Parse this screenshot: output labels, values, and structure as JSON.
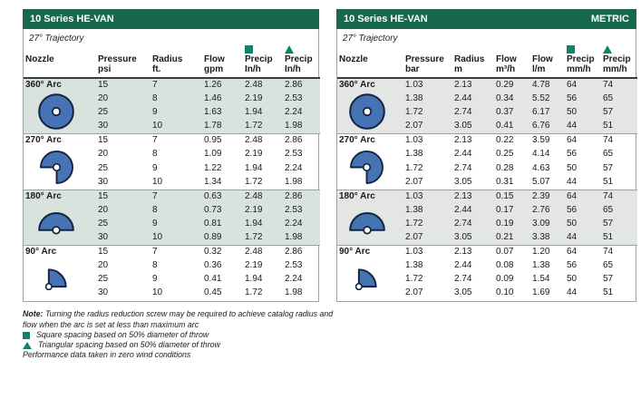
{
  "colors": {
    "header_green": "#17684F",
    "marker_green": "#118268",
    "nozzle_blue": "#4673B4",
    "nozzle_outline": "#14243F",
    "shade_us": "#D8E3DE",
    "shade_metric": "#E4E6E4"
  },
  "tables": [
    {
      "title": "10 Series HE-VAN",
      "badge": "",
      "trajectory": "27° Trajectory",
      "columns": [
        {
          "label": "Nozzle",
          "sub": "",
          "marker": ""
        },
        {
          "label": "Pressure",
          "sub": "psi",
          "marker": ""
        },
        {
          "label": "Radius",
          "sub": "ft.",
          "marker": ""
        },
        {
          "label": "Flow",
          "sub": "gpm",
          "marker": ""
        },
        {
          "label": "Precip",
          "sub": "In/h",
          "marker": "square"
        },
        {
          "label": "Precip",
          "sub": "In/h",
          "marker": "triangle"
        }
      ],
      "groups": [
        {
          "arc": "360° Arc",
          "icon": "arc-360",
          "shaded": true,
          "rows": [
            [
              "15",
              "7",
              "1.26",
              "2.48",
              "2.86"
            ],
            [
              "20",
              "8",
              "1.46",
              "2.19",
              "2.53"
            ],
            [
              "25",
              "9",
              "1.63",
              "1.94",
              "2.24"
            ],
            [
              "30",
              "10",
              "1.78",
              "1.72",
              "1.98"
            ]
          ]
        },
        {
          "arc": "270° Arc",
          "icon": "arc-270",
          "shaded": false,
          "rows": [
            [
              "15",
              "7",
              "0.95",
              "2.48",
              "2.86"
            ],
            [
              "20",
              "8",
              "1.09",
              "2.19",
              "2.53"
            ],
            [
              "25",
              "9",
              "1.22",
              "1.94",
              "2.24"
            ],
            [
              "30",
              "10",
              "1.34",
              "1.72",
              "1.98"
            ]
          ]
        },
        {
          "arc": "180° Arc",
          "icon": "arc-180",
          "shaded": true,
          "rows": [
            [
              "15",
              "7",
              "0.63",
              "2.48",
              "2.86"
            ],
            [
              "20",
              "8",
              "0.73",
              "2.19",
              "2.53"
            ],
            [
              "25",
              "9",
              "0.81",
              "1.94",
              "2.24"
            ],
            [
              "30",
              "10",
              "0.89",
              "1.72",
              "1.98"
            ]
          ]
        },
        {
          "arc": "90° Arc",
          "icon": "arc-90",
          "shaded": false,
          "rows": [
            [
              "15",
              "7",
              "0.32",
              "2.48",
              "2.86"
            ],
            [
              "20",
              "8",
              "0.36",
              "2.19",
              "2.53"
            ],
            [
              "25",
              "9",
              "0.41",
              "1.94",
              "2.24"
            ],
            [
              "30",
              "10",
              "0.45",
              "1.72",
              "1.98"
            ]
          ]
        }
      ]
    },
    {
      "title": "10 Series HE-VAN",
      "badge": "METRIC",
      "trajectory": "27° Trajectory",
      "columns": [
        {
          "label": "Nozzle",
          "sub": "",
          "marker": ""
        },
        {
          "label": "Pressure",
          "sub": "bar",
          "marker": ""
        },
        {
          "label": "Radius",
          "sub": "m",
          "marker": ""
        },
        {
          "label": "Flow",
          "sub": "m³/h",
          "marker": ""
        },
        {
          "label": "Flow",
          "sub": "l/m",
          "marker": ""
        },
        {
          "label": "Precip",
          "sub": "mm/h",
          "marker": "square"
        },
        {
          "label": "Precip",
          "sub": "mm/h",
          "marker": "triangle"
        }
      ],
      "groups": [
        {
          "arc": "360° Arc",
          "icon": "arc-360",
          "shaded": true,
          "rows": [
            [
              "1.03",
              "2.13",
              "0.29",
              "4.78",
              "64",
              "74"
            ],
            [
              "1.38",
              "2.44",
              "0.34",
              "5.52",
              "56",
              "65"
            ],
            [
              "1.72",
              "2.74",
              "0.37",
              "6.17",
              "50",
              "57"
            ],
            [
              "2.07",
              "3.05",
              "0.41",
              "6.76",
              "44",
              "51"
            ]
          ]
        },
        {
          "arc": "270° Arc",
          "icon": "arc-270",
          "shaded": false,
          "rows": [
            [
              "1.03",
              "2.13",
              "0.22",
              "3.59",
              "64",
              "74"
            ],
            [
              "1.38",
              "2.44",
              "0.25",
              "4.14",
              "56",
              "65"
            ],
            [
              "1.72",
              "2.74",
              "0.28",
              "4.63",
              "50",
              "57"
            ],
            [
              "2.07",
              "3.05",
              "0.31",
              "5.07",
              "44",
              "51"
            ]
          ]
        },
        {
          "arc": "180° Arc",
          "icon": "arc-180",
          "shaded": true,
          "rows": [
            [
              "1.03",
              "2.13",
              "0.15",
              "2.39",
              "64",
              "74"
            ],
            [
              "1.38",
              "2.44",
              "0.17",
              "2.76",
              "56",
              "65"
            ],
            [
              "1.72",
              "2.74",
              "0.19",
              "3.09",
              "50",
              "57"
            ],
            [
              "2.07",
              "3.05",
              "0.21",
              "3.38",
              "44",
              "51"
            ]
          ]
        },
        {
          "arc": "90° Arc",
          "icon": "arc-90",
          "shaded": false,
          "rows": [
            [
              "1.03",
              "2.13",
              "0.07",
              "1.20",
              "64",
              "74"
            ],
            [
              "1.38",
              "2.44",
              "0.08",
              "1.38",
              "56",
              "65"
            ],
            [
              "1.72",
              "2.74",
              "0.09",
              "1.54",
              "50",
              "57"
            ],
            [
              "2.07",
              "3.05",
              "0.10",
              "1.69",
              "44",
              "51"
            ]
          ]
        }
      ]
    }
  ],
  "col_widths": {
    "t0": [
      80,
      60,
      57,
      45,
      44,
      41
    ],
    "t1": [
      73,
      54,
      46,
      40,
      38,
      40,
      40
    ]
  },
  "footnotes": {
    "note_label": "Note:",
    "note_text": "Turning the radius reduction screw may be required to achieve catalog radius and flow when the arc is set at less than maximum arc",
    "square_legend": "Square spacing based on 50% diameter of throw",
    "triangle_legend": "Triangular spacing based on 50% diameter of throw",
    "performance": "Performance data taken in zero wind conditions"
  }
}
